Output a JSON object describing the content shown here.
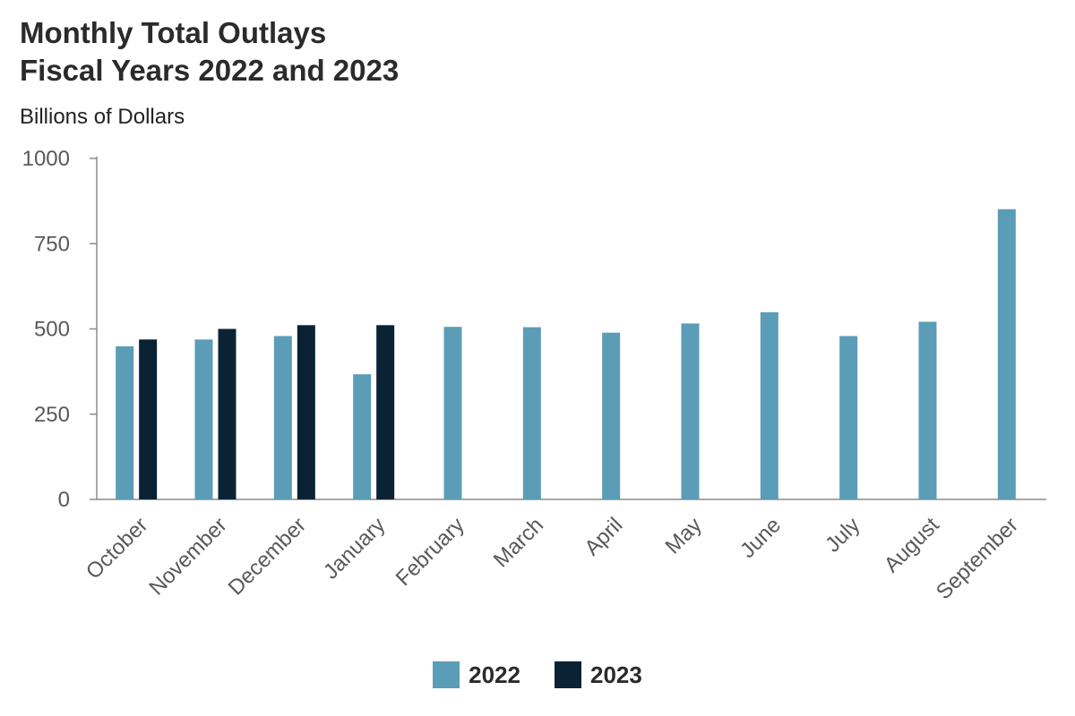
{
  "title_line1": "Monthly Total Outlays",
  "title_line2": "Fiscal Years 2022 and 2023",
  "unit_label": "Billions of Dollars",
  "colors": {
    "series_2022": "#5b9db7",
    "series_2023": "#0a2234",
    "axis": "#8c8c8c",
    "tick_text": "#595959"
  },
  "chart_data": {
    "type": "bar",
    "title": "Monthly Total Outlays Fiscal Years 2022 and 2023",
    "ylabel": "Billions of Dollars",
    "xlabel": "",
    "ylim": [
      0,
      1000
    ],
    "yticks": [
      0,
      250,
      500,
      750,
      1000
    ],
    "grid": false,
    "legend_position": "bottom",
    "categories": [
      "October",
      "November",
      "December",
      "January",
      "February",
      "March",
      "April",
      "May",
      "June",
      "July",
      "August",
      "September"
    ],
    "series": [
      {
        "name": "2022",
        "values": [
          449,
          469,
          479,
          367,
          506,
          505,
          489,
          516,
          549,
          479,
          521,
          851
        ]
      },
      {
        "name": "2023",
        "values": [
          469,
          500,
          511,
          511,
          null,
          null,
          null,
          null,
          null,
          null,
          null,
          null
        ]
      }
    ]
  }
}
